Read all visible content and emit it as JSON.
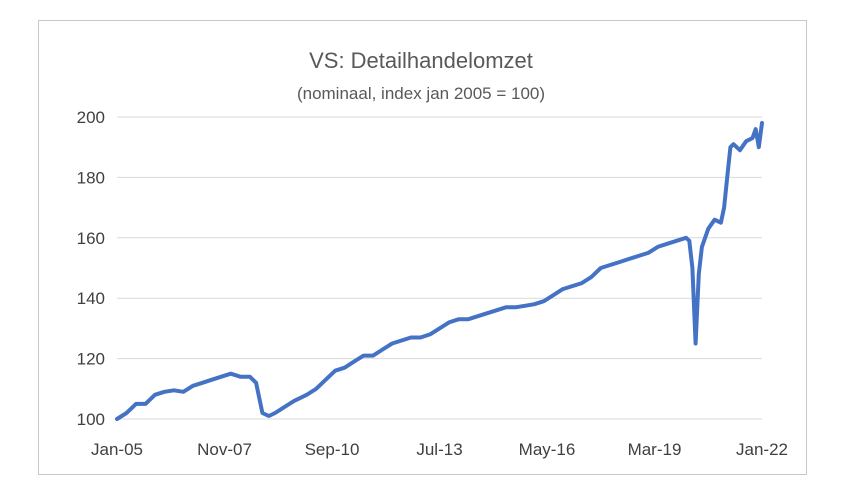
{
  "chart_data": {
    "type": "line",
    "title": "VS: Detailhandelomzet",
    "subtitle": "(nominaal, index jan 2005 = 100)",
    "xlabel": "",
    "ylabel": "",
    "ylim": [
      100,
      200
    ],
    "yticks": [
      100,
      120,
      140,
      160,
      180,
      200
    ],
    "xlim": [
      "2005-01",
      "2022-01"
    ],
    "xtick_labels": [
      "Jan-05",
      "Nov-07",
      "Sep-10",
      "Jul-13",
      "May-16",
      "Mar-19",
      "Jan-22"
    ],
    "grid": true,
    "legend": "none",
    "series_color": "#4472c4",
    "series": [
      {
        "x": [
          "2005-01",
          "2005-04",
          "2005-07",
          "2005-10",
          "2006-01",
          "2006-04",
          "2006-07",
          "2006-10",
          "2007-01",
          "2007-04",
          "2007-07",
          "2007-10",
          "2008-01",
          "2008-04",
          "2008-07",
          "2008-09",
          "2008-11",
          "2009-01",
          "2009-03",
          "2009-06",
          "2009-09",
          "2010-01",
          "2010-04",
          "2010-07",
          "2010-10",
          "2011-01",
          "2011-04",
          "2011-07",
          "2011-10",
          "2012-01",
          "2012-04",
          "2012-07",
          "2012-10",
          "2013-01",
          "2013-04",
          "2013-07",
          "2013-10",
          "2014-01",
          "2014-04",
          "2014-07",
          "2014-10",
          "2015-01",
          "2015-04",
          "2015-07",
          "2015-10",
          "2016-01",
          "2016-04",
          "2016-07",
          "2016-10",
          "2017-01",
          "2017-04",
          "2017-07",
          "2017-10",
          "2018-01",
          "2018-04",
          "2018-07",
          "2018-10",
          "2019-01",
          "2019-04",
          "2019-07",
          "2019-10",
          "2020-01",
          "2020-02",
          "2020-03",
          "2020-04",
          "2020-05",
          "2020-06",
          "2020-08",
          "2020-10",
          "2020-12",
          "2021-01",
          "2021-02",
          "2021-03",
          "2021-04",
          "2021-06",
          "2021-08",
          "2021-10",
          "2021-11",
          "2021-12",
          "2022-01"
        ],
        "values": [
          100,
          102,
          105,
          105,
          108,
          109,
          109.5,
          109,
          111,
          112,
          113,
          114,
          115,
          114,
          114,
          112,
          102,
          101,
          102,
          104,
          106,
          108,
          110,
          113,
          116,
          117,
          119,
          121,
          121,
          123,
          125,
          126,
          127,
          127,
          128,
          130,
          132,
          133,
          133,
          134,
          135,
          136,
          137,
          137,
          137.5,
          138,
          139,
          141,
          143,
          144,
          145,
          147,
          150,
          151,
          152,
          153,
          154,
          155,
          157,
          158,
          159,
          160,
          159,
          150,
          125,
          148,
          157,
          163,
          166,
          165,
          170,
          180,
          190,
          191,
          189,
          192,
          193,
          196,
          190,
          198
        ]
      }
    ]
  }
}
